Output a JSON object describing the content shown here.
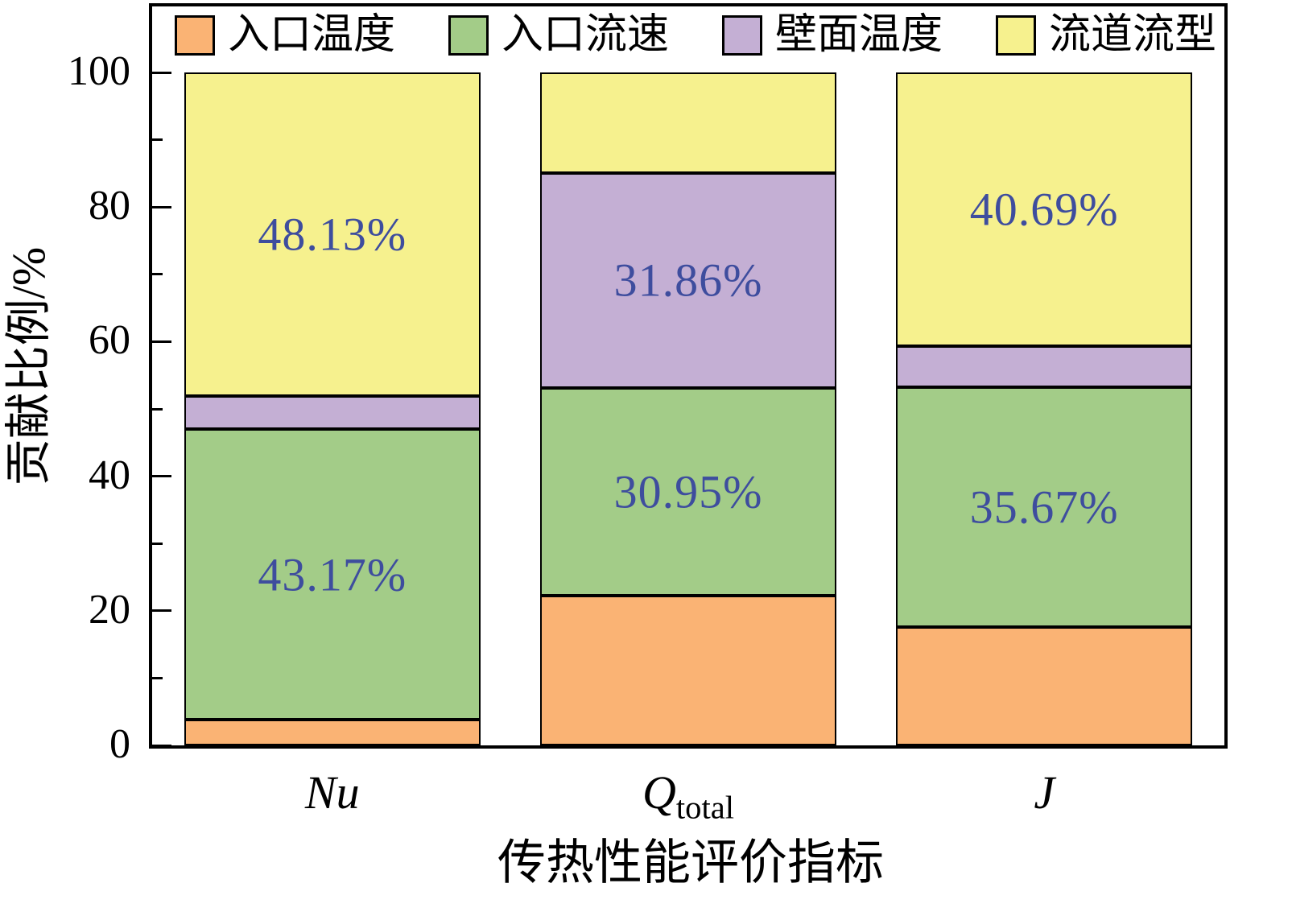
{
  "chart_data": {
    "type": "bar",
    "subtype": "stacked",
    "title": "",
    "ylabel": "贡献比例/%",
    "xlabel": "传热性能评价指标",
    "ylim": [
      0,
      100
    ],
    "yticks": [
      0,
      20,
      40,
      60,
      80,
      100
    ],
    "y_minor_step": 10,
    "grid": false,
    "legend_position": "top-inside",
    "categories": [
      {
        "id": "Nu",
        "label": "Nu",
        "sub": ""
      },
      {
        "id": "Qtotal",
        "label": "Q",
        "sub": "total"
      },
      {
        "id": "J",
        "label": "J",
        "sub": ""
      }
    ],
    "series": [
      {
        "id": "inlet-temperature",
        "name": "入口温度",
        "color": "#FAB374",
        "values": [
          3.8,
          22.2,
          17.6
        ]
      },
      {
        "id": "inlet-velocity",
        "name": "入口流速",
        "color": "#A3CC88",
        "values": [
          43.17,
          30.95,
          35.67
        ]
      },
      {
        "id": "wall-temperature",
        "name": "壁面温度",
        "color": "#C4AFD4",
        "values": [
          4.9,
          31.86,
          6.04
        ]
      },
      {
        "id": "flow-pattern",
        "name": "流道流型",
        "color": "#F6F18E",
        "values": [
          48.13,
          14.99,
          40.69
        ]
      }
    ],
    "segment_labels": [
      [
        null,
        null,
        null
      ],
      [
        "43.17%",
        "30.95%",
        "35.67%"
      ],
      [
        null,
        "31.86%",
        null
      ],
      [
        "48.13%",
        null,
        "40.69%"
      ]
    ],
    "label_color": "#3E4D9E",
    "axis_color": "#000000",
    "background_color": "#FFFFFF"
  }
}
